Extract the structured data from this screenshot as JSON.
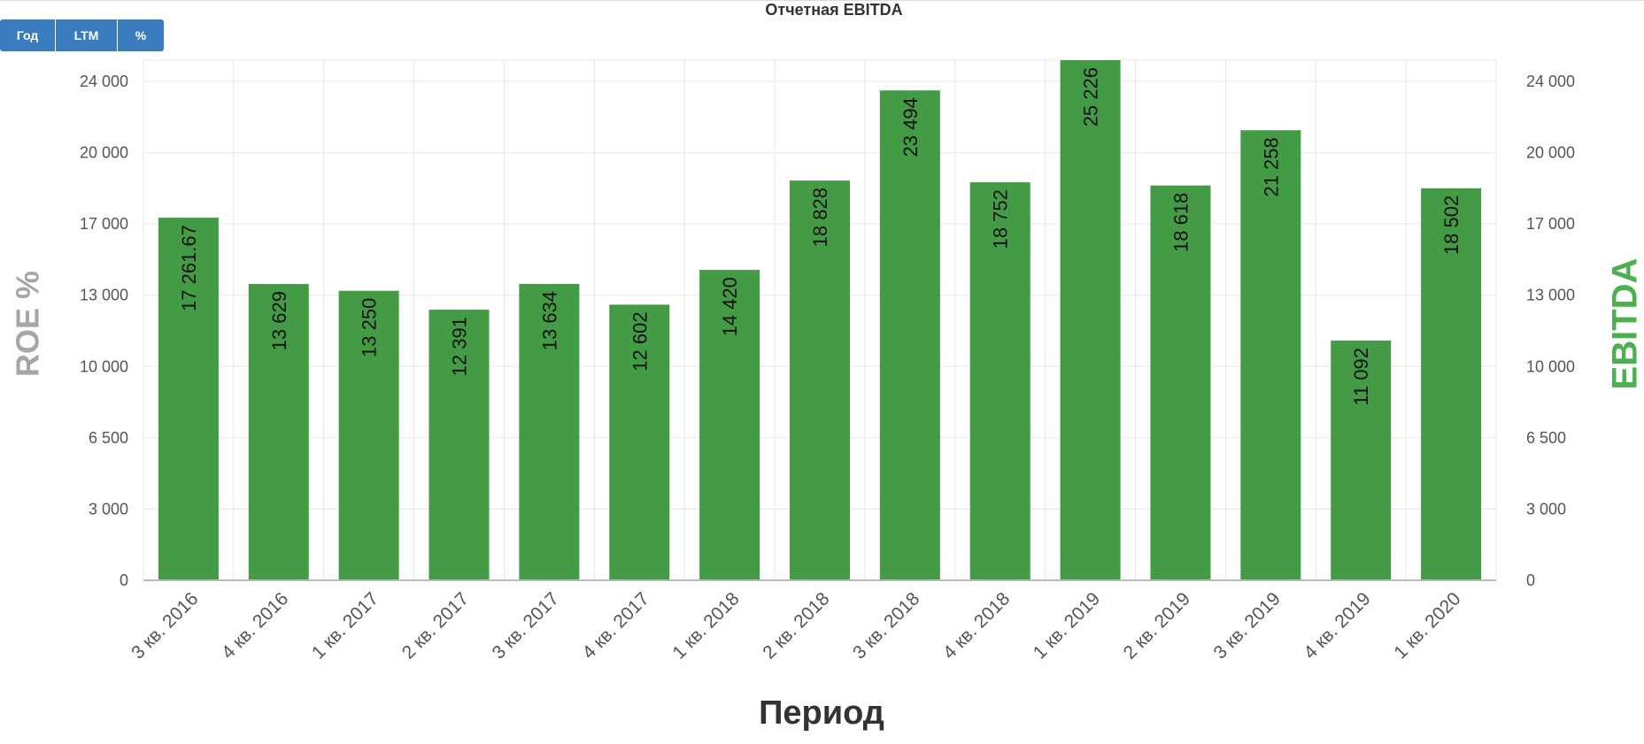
{
  "toolbar": {
    "buttons": [
      "Год",
      "LTM",
      "%"
    ]
  },
  "chart_data": {
    "type": "bar",
    "title": "Отчетная EBITDA",
    "xlabel": "Период",
    "ylabel_left": "ROE %",
    "ylabel_right": "EBITDA",
    "categories": [
      "3 кв. 2016",
      "4 кв. 2016",
      "1 кв. 2017",
      "2 кв. 2017",
      "3 кв. 2017",
      "4 кв. 2017",
      "1 кв. 2018",
      "2 кв. 2018",
      "3 кв. 2018",
      "4 кв. 2018",
      "1 кв. 2019",
      "2 кв. 2019",
      "3 кв. 2019",
      "4 кв. 2019",
      "1 кв. 2020"
    ],
    "values": [
      17261.67,
      13629,
      13250,
      12391,
      13634,
      12602,
      14420,
      18828,
      23494,
      18752,
      25226,
      18618,
      21258,
      11092,
      18502
    ],
    "value_labels": [
      "17 261.67",
      "13 629",
      "13 250",
      "12 391",
      "13 634",
      "12 602",
      "14 420",
      "18 828",
      "23 494",
      "18 752",
      "25 226",
      "18 618",
      "21 258",
      "11 092",
      "18 502"
    ],
    "ticks": [
      0,
      3000,
      6500,
      10000,
      13000,
      17000,
      20000,
      24000
    ],
    "tick_labels": [
      "0",
      "3 000",
      "6 500",
      "10 000",
      "13 000",
      "17 000",
      "20 000",
      "24 000"
    ],
    "grid": true,
    "colors": {
      "bar": "#449b45",
      "grid": "#e6e6e6",
      "axis_text": "#555555",
      "left_label": "#a6a6a6",
      "right_label": "#4caf50",
      "button": "#3a7cc0"
    }
  }
}
